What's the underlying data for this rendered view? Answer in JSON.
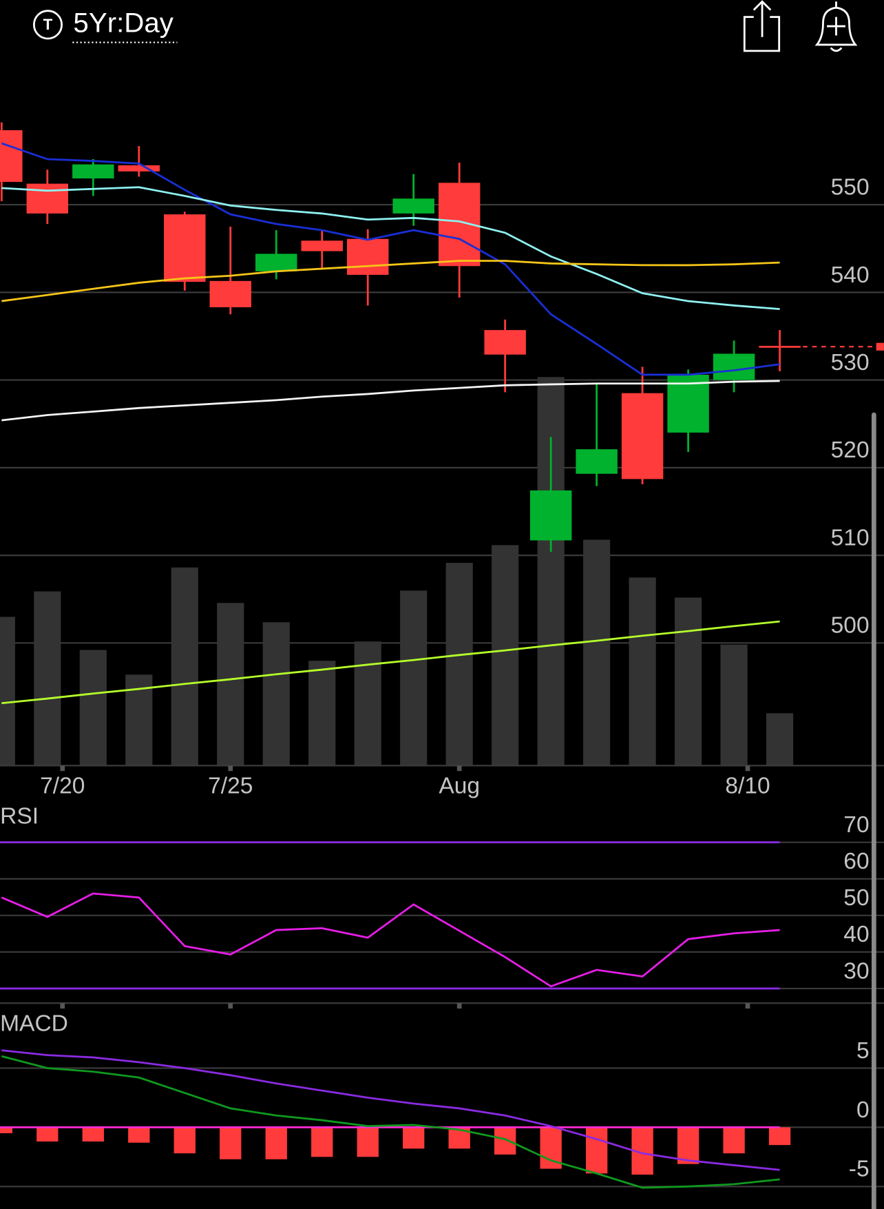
{
  "header": {
    "icon_letter": "T",
    "period": "5Yr:Day"
  },
  "chart_data": [
    {
      "type": "candlestick",
      "x": [
        0,
        1,
        2,
        3,
        4,
        5,
        6,
        7,
        8,
        9,
        10,
        11,
        12,
        13,
        14,
        15,
        16,
        17
      ],
      "xlim": [
        0,
        17
      ],
      "xticks": [
        {
          "value": 1.33,
          "label": "7/20"
        },
        {
          "value": 5,
          "label": "7/25"
        },
        {
          "value": 10,
          "label": "Aug"
        },
        {
          "value": 16.3,
          "label": "8/10"
        }
      ],
      "open": [
        558.5,
        552.4,
        553.0,
        554.5,
        548.9,
        541.3,
        542.4,
        545.9,
        546.1,
        549.0,
        552.5,
        535.7,
        511.7,
        519.3,
        528.5,
        524.0,
        530.0,
        533.9
      ],
      "high": [
        559.4,
        554.0,
        555.2,
        556.7,
        549.2,
        547.5,
        547.1,
        547.0,
        547.2,
        553.5,
        554.8,
        536.9,
        523.5,
        529.7,
        531.5,
        531.2,
        534.5,
        535.7
      ],
      "low": [
        550.4,
        547.8,
        551.0,
        553.2,
        540.2,
        537.5,
        541.5,
        542.7,
        538.5,
        547.6,
        539.4,
        528.6,
        510.4,
        517.9,
        518.1,
        521.8,
        528.6,
        531.0
      ],
      "close": [
        552.6,
        549.0,
        554.6,
        553.8,
        541.2,
        538.3,
        544.4,
        544.7,
        542.0,
        550.7,
        543.0,
        532.9,
        517.4,
        522.1,
        518.7,
        530.6,
        533.0,
        533.8
      ],
      "up_color": "#00b22d",
      "down_color": "#ff3b3b",
      "ylim": [
        486,
        565
      ],
      "yticks": [
        550,
        540,
        530,
        520,
        510,
        500
      ],
      "grid": true,
      "overlays": [
        {
          "color": "#1a2fd6",
          "values": [
            557.0,
            555.2,
            555.0,
            554.7,
            551.7,
            548.9,
            547.8,
            547.1,
            546.0,
            547.1,
            546.1,
            543.2,
            537.5,
            534.1,
            530.6,
            530.6,
            531.1,
            531.8
          ]
        },
        {
          "color": "#8ff0f0",
          "values": [
            551.9,
            551.6,
            551.8,
            552.0,
            551.0,
            549.9,
            549.4,
            549.0,
            548.3,
            548.5,
            548.1,
            546.8,
            544.1,
            542.1,
            539.9,
            539.0,
            538.5,
            538.1
          ]
        },
        {
          "color": "#f5c518",
          "values": [
            539.0,
            539.7,
            540.4,
            541.1,
            541.6,
            541.9,
            542.4,
            542.7,
            543.0,
            543.3,
            543.6,
            543.6,
            543.3,
            543.2,
            543.1,
            543.1,
            543.2,
            543.4
          ]
        },
        {
          "color": "#f4f4f4",
          "values": [
            525.4,
            526.0,
            526.4,
            526.8,
            527.1,
            527.4,
            527.7,
            528.1,
            528.4,
            528.8,
            529.1,
            529.4,
            529.5,
            529.6,
            529.6,
            529.6,
            529.8,
            529.9
          ]
        }
      ],
      "volume": {
        "color": "#333333",
        "ylim": [
          0,
          100
        ],
        "values": [
          38.6,
          45.2,
          30.0,
          23.6,
          51.4,
          42.2,
          37.2,
          27.2,
          32.2,
          45.4,
          52.6,
          57.2,
          100.8,
          58.6,
          48.8,
          43.6,
          31.4,
          13.6
        ],
        "average": {
          "color": "#b5ff2a",
          "values": [
            16.2,
            17.4,
            18.7,
            19.9,
            21.2,
            22.4,
            23.7,
            24.9,
            26.2,
            27.4,
            28.7,
            29.9,
            31.2,
            32.4,
            33.7,
            34.9,
            36.2,
            37.4
          ]
        }
      }
    },
    {
      "type": "line",
      "title": "RSI",
      "ylim": [
        26,
        80
      ],
      "yticks": [
        70,
        60,
        50,
        40,
        30
      ],
      "grid": true,
      "bands": [
        70,
        30
      ],
      "band_color": "#8a2be2",
      "series": [
        {
          "color": "#e61ee6",
          "values": [
            54.9,
            49.6,
            56.0,
            54.9,
            41.6,
            39.3,
            46.0,
            46.5,
            43.9,
            53.0,
            45.8,
            38.6,
            30.6,
            35.1,
            33.3,
            43.5,
            45.1,
            46.0
          ]
        }
      ]
    },
    {
      "type": "macd",
      "title": "MACD",
      "ylim": [
        -6.9,
        9.9
      ],
      "yticks": [
        5,
        0,
        -5
      ],
      "grid": true,
      "zero_line_color": "#ff2bd6",
      "series": [
        {
          "color": "#0f9a1f",
          "values": [
            6.0,
            5.0,
            4.7,
            4.2,
            2.9,
            1.6,
            1.0,
            0.6,
            0.1,
            0.2,
            -0.2,
            -1.0,
            -2.8,
            -3.9,
            -5.1,
            -5.0,
            -4.8,
            -4.4
          ]
        },
        {
          "color": "#8a2be2",
          "values": [
            6.5,
            6.1,
            5.9,
            5.5,
            5.0,
            4.4,
            3.7,
            3.1,
            2.5,
            2.0,
            1.6,
            1.0,
            0.1,
            -1.0,
            -2.2,
            -2.8,
            -3.2,
            -3.6
          ]
        }
      ],
      "histogram": {
        "color": "#ff3b3b",
        "values": [
          -0.5,
          -1.2,
          -1.2,
          -1.3,
          -2.2,
          -2.7,
          -2.7,
          -2.5,
          -2.5,
          -1.8,
          -1.8,
          -2.3,
          -3.5,
          -3.9,
          -4.0,
          -3.1,
          -2.2,
          -1.5
        ]
      }
    }
  ]
}
